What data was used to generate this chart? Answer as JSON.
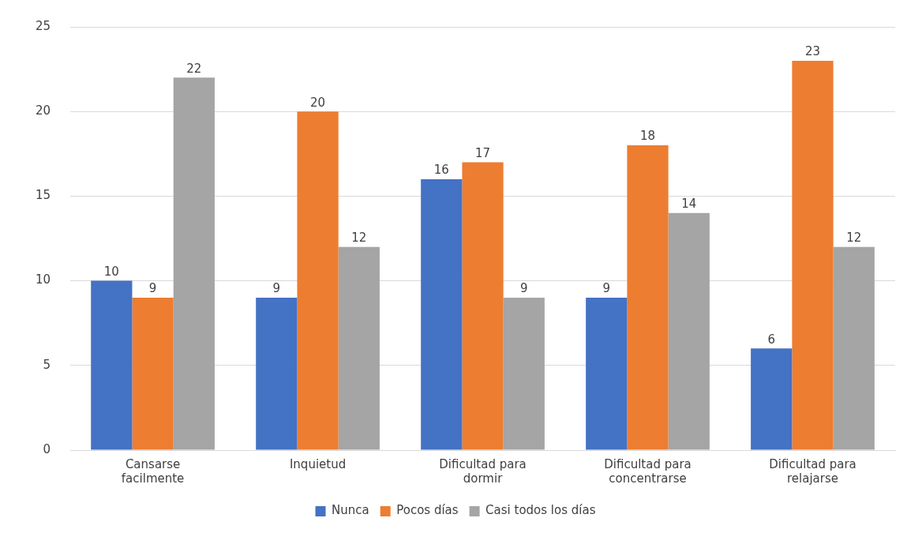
{
  "chart_data": {
    "type": "bar",
    "categories": [
      "Cansarse facilmente",
      "Inquietud",
      "Dificultad para dormir",
      "Dificultad para concentrarse",
      "Dificultad para relajarse"
    ],
    "series": [
      {
        "name": "Nunca",
        "color": "#4472c4",
        "values": [
          10,
          9,
          16,
          9,
          6
        ]
      },
      {
        "name": "Pocos días",
        "color": "#ed7d31",
        "values": [
          9,
          20,
          17,
          18,
          23
        ]
      },
      {
        "name": "Casi todos los días",
        "color": "#a5a5a5",
        "values": [
          22,
          12,
          9,
          14,
          12
        ]
      }
    ],
    "ylim": [
      0,
      25
    ],
    "yticks": [
      0,
      5,
      10,
      15,
      20,
      25
    ],
    "grid": "y",
    "legend": "bottom",
    "data_labels": true
  }
}
